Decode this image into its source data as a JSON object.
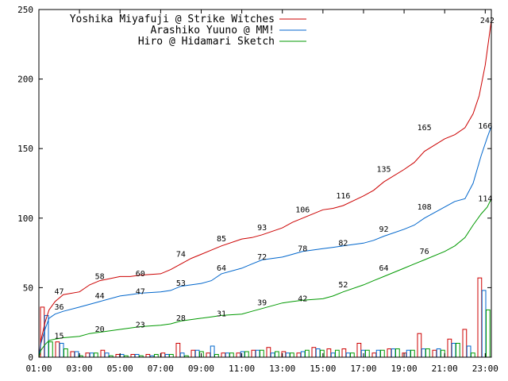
{
  "chart_data": {
    "type": "line",
    "title": "",
    "xlabel": "",
    "ylabel": "",
    "ylim": [
      0,
      250
    ],
    "xlim": [
      1.0,
      23.3
    ],
    "grid": false,
    "legend_position": "top-left",
    "y_ticks": [
      0,
      50,
      100,
      150,
      200,
      250
    ],
    "x_ticks": [
      {
        "x": 1,
        "label": "01:00"
      },
      {
        "x": 3,
        "label": "03:00"
      },
      {
        "x": 5,
        "label": "05:00"
      },
      {
        "x": 7,
        "label": "07:00"
      },
      {
        "x": 9,
        "label": "09:00"
      },
      {
        "x": 11,
        "label": "11:00"
      },
      {
        "x": 13,
        "label": "13:00"
      },
      {
        "x": 15,
        "label": "15:00"
      },
      {
        "x": 17,
        "label": "17:00"
      },
      {
        "x": 19,
        "label": "19:00"
      },
      {
        "x": 21,
        "label": "21:00"
      },
      {
        "x": 23,
        "label": "23:00"
      }
    ],
    "series": [
      {
        "name": "Yoshika Miyafuji @ Strike Witches",
        "color": "#cc0000",
        "cumulative": [
          [
            1.0,
            0
          ],
          [
            1.1,
            12
          ],
          [
            1.3,
            25
          ],
          [
            1.5,
            34
          ],
          [
            1.8,
            40
          ],
          [
            2.2,
            45
          ],
          [
            3.0,
            47
          ],
          [
            3.5,
            52
          ],
          [
            4.0,
            55
          ],
          [
            5.0,
            58
          ],
          [
            5.5,
            58
          ],
          [
            6.0,
            59
          ],
          [
            7.0,
            60
          ],
          [
            7.5,
            63
          ],
          [
            8.0,
            67
          ],
          [
            8.5,
            71
          ],
          [
            9.0,
            74
          ],
          [
            9.5,
            77
          ],
          [
            10.0,
            80
          ],
          [
            11.0,
            85
          ],
          [
            11.5,
            86
          ],
          [
            12.0,
            88
          ],
          [
            13.0,
            93
          ],
          [
            13.5,
            97
          ],
          [
            14.0,
            100
          ],
          [
            15.0,
            106
          ],
          [
            15.5,
            107
          ],
          [
            16.0,
            109
          ],
          [
            17.0,
            116
          ],
          [
            17.5,
            120
          ],
          [
            18.0,
            126
          ],
          [
            19.0,
            135
          ],
          [
            19.5,
            140
          ],
          [
            20.0,
            148
          ],
          [
            21.0,
            157
          ],
          [
            21.5,
            160
          ],
          [
            22.0,
            165
          ],
          [
            22.4,
            175
          ],
          [
            22.7,
            188
          ],
          [
            23.0,
            210
          ],
          [
            23.3,
            242
          ]
        ],
        "labels": [
          [
            2.0,
            47
          ],
          [
            4.0,
            58
          ],
          [
            6.0,
            60
          ],
          [
            8.0,
            74
          ],
          [
            10.0,
            85
          ],
          [
            12.0,
            93
          ],
          [
            14.0,
            106
          ],
          [
            16.0,
            116
          ],
          [
            18.0,
            135
          ],
          [
            20.0,
            165
          ],
          [
            23.1,
            242
          ]
        ],
        "hourly": [
          36,
          11,
          4,
          3,
          5,
          2,
          2,
          2,
          3,
          10,
          5,
          3,
          3,
          3,
          5,
          7,
          4,
          3,
          7,
          6,
          6,
          10,
          3,
          6,
          3,
          17,
          5,
          13,
          20,
          57
        ]
      },
      {
        "name": "Arashiko Yuuno @ MM!",
        "color": "#0066cc",
        "cumulative": [
          [
            1.0,
            0
          ],
          [
            1.1,
            10
          ],
          [
            1.3,
            20
          ],
          [
            1.5,
            28
          ],
          [
            1.8,
            31
          ],
          [
            2.2,
            33
          ],
          [
            3.0,
            36
          ],
          [
            3.5,
            38
          ],
          [
            4.0,
            40
          ],
          [
            5.0,
            44
          ],
          [
            5.5,
            45
          ],
          [
            6.0,
            46
          ],
          [
            7.0,
            47
          ],
          [
            7.5,
            48
          ],
          [
            8.0,
            51
          ],
          [
            9.0,
            53
          ],
          [
            9.5,
            55
          ],
          [
            10.0,
            60
          ],
          [
            11.0,
            64
          ],
          [
            11.5,
            67
          ],
          [
            12.0,
            70
          ],
          [
            13.0,
            72
          ],
          [
            13.5,
            74
          ],
          [
            14.0,
            76
          ],
          [
            15.0,
            78
          ],
          [
            15.5,
            79
          ],
          [
            16.0,
            80
          ],
          [
            17.0,
            82
          ],
          [
            17.5,
            84
          ],
          [
            18.0,
            87
          ],
          [
            19.0,
            92
          ],
          [
            19.5,
            95
          ],
          [
            20.0,
            100
          ],
          [
            21.0,
            108
          ],
          [
            21.5,
            112
          ],
          [
            22.0,
            114
          ],
          [
            22.4,
            125
          ],
          [
            22.8,
            145
          ],
          [
            23.1,
            158
          ],
          [
            23.3,
            166
          ]
        ],
        "labels": [
          [
            2.0,
            36
          ],
          [
            4.0,
            44
          ],
          [
            6.0,
            47
          ],
          [
            8.0,
            53
          ],
          [
            10.0,
            64
          ],
          [
            12.0,
            72
          ],
          [
            14.0,
            78
          ],
          [
            16.0,
            82
          ],
          [
            18.0,
            92
          ],
          [
            20.0,
            108
          ],
          [
            23.0,
            166
          ]
        ],
        "hourly": [
          30,
          10,
          4,
          3,
          3,
          2,
          2,
          1,
          2,
          3,
          5,
          8,
          3,
          4,
          5,
          3,
          3,
          4,
          6,
          3,
          3,
          5,
          5,
          6,
          5,
          6,
          6,
          10,
          8,
          48
        ]
      },
      {
        "name": "Hiro @ Hidamari Sketch",
        "color": "#009900",
        "cumulative": [
          [
            1.0,
            0
          ],
          [
            1.1,
            5
          ],
          [
            1.3,
            9
          ],
          [
            1.5,
            12
          ],
          [
            1.8,
            13
          ],
          [
            2.2,
            14
          ],
          [
            3.0,
            15
          ],
          [
            3.5,
            17
          ],
          [
            4.0,
            18
          ],
          [
            5.0,
            20
          ],
          [
            6.0,
            22
          ],
          [
            7.0,
            23
          ],
          [
            7.5,
            24
          ],
          [
            8.0,
            26
          ],
          [
            9.0,
            28
          ],
          [
            9.5,
            29
          ],
          [
            10.0,
            30
          ],
          [
            11.0,
            31
          ],
          [
            11.5,
            33
          ],
          [
            12.0,
            35
          ],
          [
            13.0,
            39
          ],
          [
            13.5,
            40
          ],
          [
            14.0,
            41
          ],
          [
            15.0,
            42
          ],
          [
            15.5,
            44
          ],
          [
            16.0,
            47
          ],
          [
            17.0,
            52
          ],
          [
            17.5,
            55
          ],
          [
            18.0,
            58
          ],
          [
            19.0,
            64
          ],
          [
            19.5,
            67
          ],
          [
            20.0,
            70
          ],
          [
            21.0,
            76
          ],
          [
            21.5,
            80
          ],
          [
            22.0,
            86
          ],
          [
            22.4,
            95
          ],
          [
            22.8,
            103
          ],
          [
            23.1,
            108
          ],
          [
            23.3,
            114
          ]
        ],
        "labels": [
          [
            2.0,
            15
          ],
          [
            4.0,
            20
          ],
          [
            6.0,
            23
          ],
          [
            8.0,
            28
          ],
          [
            10.0,
            31
          ],
          [
            12.0,
            39
          ],
          [
            14.0,
            42
          ],
          [
            16.0,
            52
          ],
          [
            18.0,
            64
          ],
          [
            20.0,
            76
          ],
          [
            23.0,
            114
          ]
        ],
        "hourly": [
          11,
          6,
          1,
          3,
          1,
          1,
          1,
          2,
          2,
          1,
          4,
          2,
          3,
          4,
          5,
          4,
          3,
          5,
          5,
          5,
          3,
          5,
          5,
          6,
          5,
          6,
          5,
          10,
          3,
          34
        ]
      }
    ]
  }
}
